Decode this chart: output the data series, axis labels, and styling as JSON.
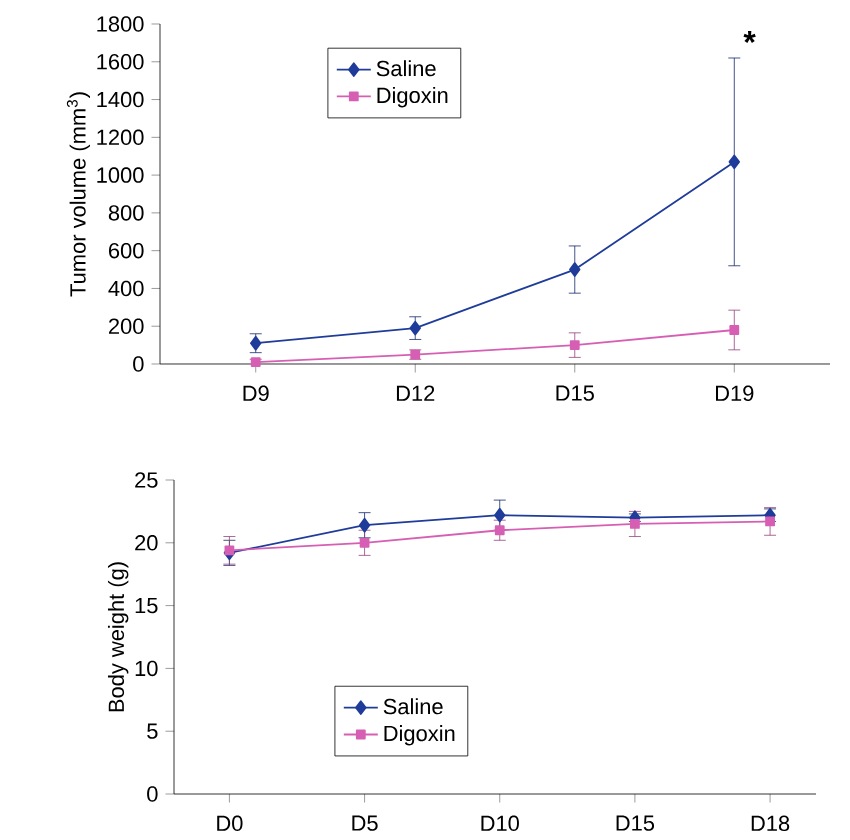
{
  "chart_data": [
    {
      "type": "line",
      "ylabel": "Tumor volume (mm$^{3}$)",
      "categories": [
        "D9",
        "D12",
        "D15",
        "D19"
      ],
      "ylim": [
        0,
        1800
      ],
      "yticks": [
        0,
        200,
        400,
        600,
        800,
        1000,
        1200,
        1400,
        1600,
        1800
      ],
      "legend": "top left",
      "grid": false,
      "line_style": "solid",
      "series": [
        {
          "name": "Saline",
          "color": "#1f3c9a",
          "marker": "diamond",
          "values": [
            110,
            190,
            500,
            1070
          ],
          "errors": [
            50,
            60,
            125,
            550
          ]
        },
        {
          "name": "Digoxin",
          "color": "#d65fb4",
          "marker": "square",
          "values": [
            10,
            50,
            100,
            180
          ],
          "errors": [
            15,
            25,
            65,
            105
          ]
        }
      ],
      "annotations": [
        "*"
      ]
    },
    {
      "type": "line",
      "ylabel": "Body weight (g)",
      "categories": [
        "D0",
        "D5",
        "D10",
        "D15",
        "D18"
      ],
      "ylim": [
        0,
        25
      ],
      "yticks": [
        0,
        5,
        10,
        15,
        20,
        25
      ],
      "legend": "bottom left",
      "grid": false,
      "line_style": "solid",
      "series": [
        {
          "name": "Saline",
          "color": "#1f3c9a",
          "marker": "diamond",
          "values": [
            19.2,
            21.4,
            22.2,
            22.0,
            22.2
          ],
          "errors": [
            1,
            1,
            1.2,
            0.3,
            0.5
          ]
        },
        {
          "name": "Digoxin",
          "color": "#d65fb4",
          "marker": "square",
          "values": [
            19.4,
            20.0,
            21.0,
            21.5,
            21.7
          ],
          "errors": [
            1.1,
            1,
            0.8,
            1.0,
            1.1
          ]
        }
      ]
    }
  ]
}
